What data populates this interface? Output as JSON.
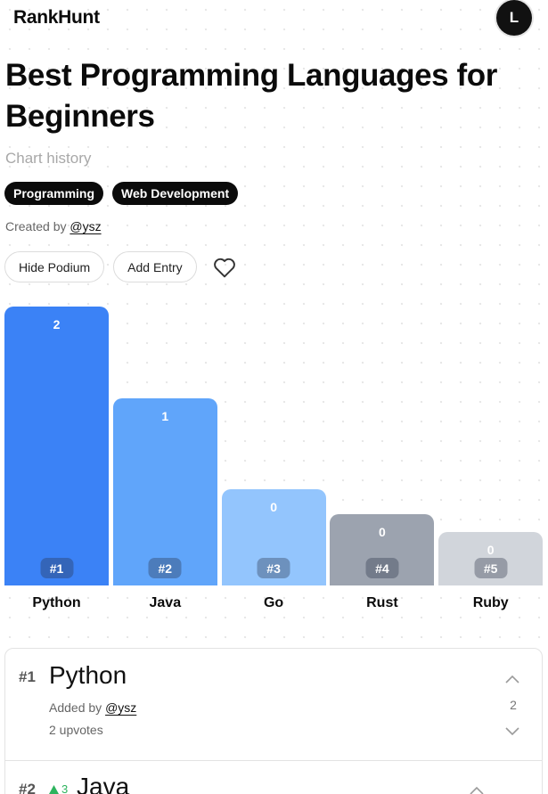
{
  "app": {
    "name": "RankHunt",
    "avatar_initial": "L"
  },
  "page": {
    "title": "Best Programming Languages for Beginners",
    "chart_history": "Chart history",
    "tags": [
      "Programming",
      "Web Development"
    ],
    "created_prefix": "Created by",
    "created_user": "@ysz"
  },
  "actions": {
    "hide_podium": "Hide Podium",
    "add_entry": "Add Entry",
    "favorite_icon": "heart-icon"
  },
  "chart_data": {
    "type": "bar",
    "categories": [
      "Python",
      "Java",
      "Go",
      "Rust",
      "Ruby"
    ],
    "values": [
      2,
      1,
      0,
      0,
      0
    ],
    "ranks": [
      "#1",
      "#2",
      "#3",
      "#4",
      "#5"
    ],
    "colors": [
      "#3b82f6",
      "#60a5fa",
      "#93c5fd",
      "#9ca3af",
      "#d1d5db"
    ]
  },
  "entries": [
    {
      "rank": "#1",
      "name": "Python",
      "added_prefix": "Added by",
      "added_user": "@ysz",
      "upvotes": "2 upvotes",
      "count": "2"
    },
    {
      "rank": "#2",
      "name": "Java",
      "delta": "3"
    }
  ]
}
